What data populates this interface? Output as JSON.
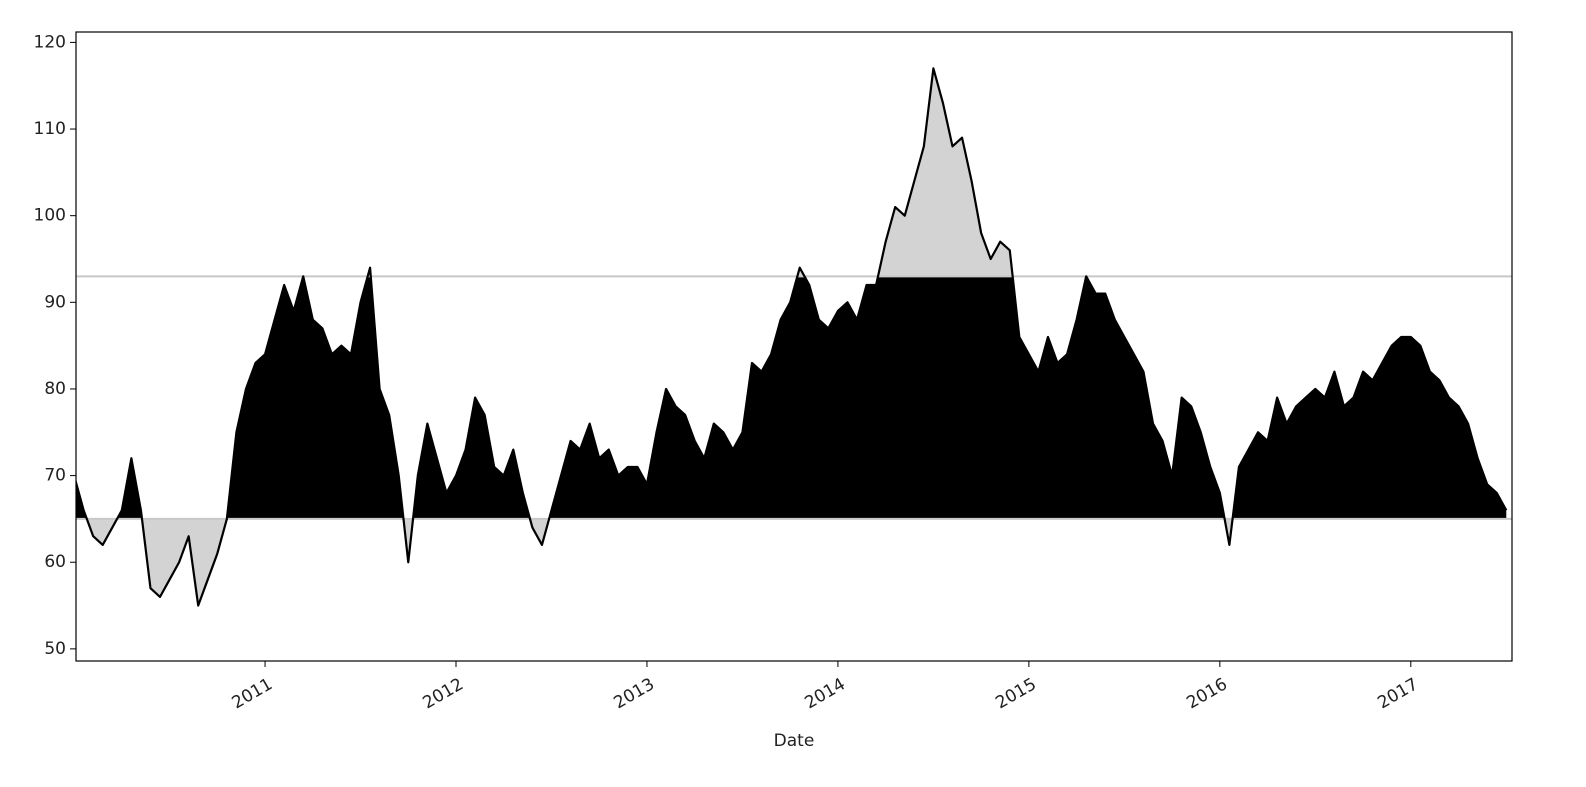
{
  "chart_data": {
    "type": "area",
    "xlabel": "Date",
    "x": [
      2010.0,
      2010.05,
      2010.1,
      2010.15,
      2010.2,
      2010.25,
      2010.3,
      2010.35,
      2010.4,
      2010.45,
      2010.5,
      2010.55,
      2010.6,
      2010.65,
      2010.7,
      2010.75,
      2010.8,
      2010.85,
      2010.9,
      2010.95,
      2011.0,
      2011.05,
      2011.1,
      2011.15,
      2011.2,
      2011.25,
      2011.3,
      2011.35,
      2011.4,
      2011.45,
      2011.5,
      2011.55,
      2011.6,
      2011.65,
      2011.7,
      2011.75,
      2011.8,
      2011.85,
      2011.9,
      2011.95,
      2012.0,
      2012.05,
      2012.1,
      2012.15,
      2012.2,
      2012.25,
      2012.3,
      2012.35,
      2012.4,
      2012.45,
      2012.5,
      2012.55,
      2012.6,
      2012.65,
      2012.7,
      2012.75,
      2012.8,
      2012.85,
      2012.9,
      2012.95,
      2013.0,
      2013.05,
      2013.1,
      2013.15,
      2013.2,
      2013.25,
      2013.3,
      2013.35,
      2013.4,
      2013.45,
      2013.5,
      2013.55,
      2013.6,
      2013.65,
      2013.7,
      2013.75,
      2013.8,
      2013.85,
      2013.9,
      2013.95,
      2014.0,
      2014.05,
      2014.1,
      2014.15,
      2014.2,
      2014.25,
      2014.3,
      2014.35,
      2014.4,
      2014.45,
      2014.5,
      2014.55,
      2014.6,
      2014.65,
      2014.7,
      2014.75,
      2014.8,
      2014.85,
      2014.9,
      2014.95,
      2015.0,
      2015.05,
      2015.1,
      2015.15,
      2015.2,
      2015.25,
      2015.3,
      2015.35,
      2015.4,
      2015.45,
      2015.5,
      2015.55,
      2015.6,
      2015.65,
      2015.7,
      2015.75,
      2015.8,
      2015.85,
      2015.9,
      2015.95,
      2016.0,
      2016.05,
      2016.1,
      2016.15,
      2016.2,
      2016.25,
      2016.3,
      2016.35,
      2016.4,
      2016.45,
      2016.5,
      2016.55,
      2016.6,
      2016.65,
      2016.7,
      2016.75,
      2016.8,
      2016.85,
      2016.9,
      2016.95,
      2017.0,
      2017.05,
      2017.1,
      2017.15,
      2017.2,
      2017.25,
      2017.3,
      2017.35,
      2017.4,
      2017.45,
      2017.5
    ],
    "values": [
      70,
      66,
      63,
      62,
      64,
      66,
      72,
      66,
      57,
      56,
      58,
      60,
      63,
      55,
      58,
      61,
      65,
      75,
      80,
      83,
      84,
      88,
      92,
      89,
      93,
      88,
      87,
      84,
      85,
      84,
      90,
      94,
      80,
      77,
      70,
      60,
      70,
      76,
      72,
      68,
      70,
      73,
      79,
      77,
      71,
      70,
      73,
      68,
      64,
      62,
      66,
      70,
      74,
      73,
      76,
      72,
      73,
      70,
      71,
      71,
      69,
      75,
      80,
      78,
      77,
      74,
      72,
      76,
      75,
      73,
      75,
      83,
      82,
      84,
      88,
      90,
      94,
      92,
      88,
      87,
      89,
      90,
      88,
      92,
      92,
      97,
      101,
      100,
      104,
      108,
      117,
      113,
      108,
      109,
      104,
      98,
      95,
      97,
      96,
      86,
      84,
      82,
      86,
      83,
      84,
      88,
      93,
      91,
      91,
      88,
      86,
      84,
      82,
      76,
      74,
      70,
      79,
      78,
      75,
      71,
      68,
      62,
      71,
      73,
      75,
      74,
      79,
      76,
      78,
      79,
      80,
      79,
      82,
      78,
      79,
      82,
      81,
      83,
      85,
      86,
      86,
      85,
      82,
      81,
      79,
      78,
      76,
      72,
      69,
      68,
      66
    ],
    "thresholds": [
      65,
      93
    ],
    "color": "#000000",
    "fill_color": "#000000",
    "outside_color": "#d3d3d3",
    "threshold_color": "#c8c8c8",
    "xlim": [
      2010.01,
      2017.53
    ],
    "xticks": [
      2011,
      2012,
      2013,
      2014,
      2015,
      2016,
      2017
    ],
    "ylim": [
      48.6,
      121.2
    ],
    "yticks": [
      50,
      60,
      70,
      80,
      90,
      100,
      110,
      120
    ]
  }
}
